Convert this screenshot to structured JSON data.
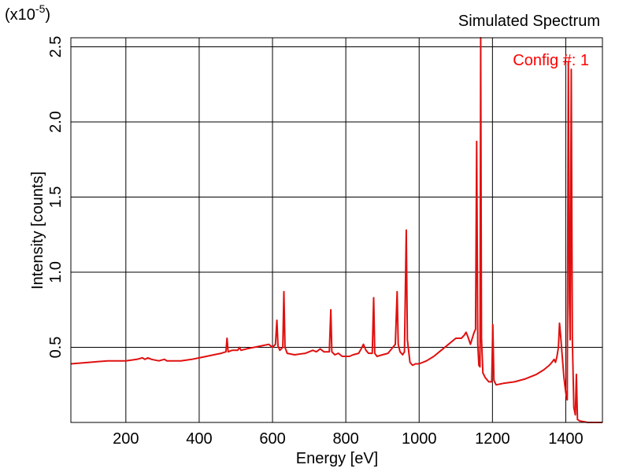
{
  "chart_data": {
    "type": "line",
    "title": "Simulated Spectrum",
    "xlabel": "Energy [eV]",
    "ylabel": "Intensity [counts]",
    "y_multiplier": {
      "base": "(x10",
      "exponent": "-5",
      "close": ")"
    },
    "annotation": "Config #: 1",
    "xlim": [
      50,
      1500
    ],
    "ylim": [
      0,
      2.56
    ],
    "x_ticks": [
      200,
      400,
      600,
      800,
      1000,
      1200,
      1400
    ],
    "x_tick_labels": [
      "200",
      "400",
      "600",
      "800",
      "1000",
      "1200",
      "1400"
    ],
    "y_ticks": [
      0.5,
      1.0,
      1.5,
      2.0,
      2.5
    ],
    "y_tick_labels": [
      "0.5",
      "1.0",
      "1.5",
      "2.0",
      "2.5"
    ],
    "grid": true,
    "line_color": "#e01010",
    "annotation_color": "#ff0000",
    "series": [
      {
        "values": [
          [
            50,
            0.39
          ],
          [
            100,
            0.4
          ],
          [
            150,
            0.41
          ],
          [
            200,
            0.41
          ],
          [
            230,
            0.42
          ],
          [
            245,
            0.43
          ],
          [
            252,
            0.42
          ],
          [
            260,
            0.43
          ],
          [
            270,
            0.42
          ],
          [
            290,
            0.41
          ],
          [
            305,
            0.42
          ],
          [
            312,
            0.41
          ],
          [
            330,
            0.41
          ],
          [
            350,
            0.41
          ],
          [
            380,
            0.42
          ],
          [
            400,
            0.43
          ],
          [
            420,
            0.44
          ],
          [
            440,
            0.45
          ],
          [
            460,
            0.46
          ],
          [
            473,
            0.47
          ],
          [
            476,
            0.56
          ],
          [
            479,
            0.47
          ],
          [
            490,
            0.48
          ],
          [
            505,
            0.48
          ],
          [
            510,
            0.5
          ],
          [
            514,
            0.48
          ],
          [
            530,
            0.49
          ],
          [
            550,
            0.5
          ],
          [
            570,
            0.51
          ],
          [
            590,
            0.52
          ],
          [
            600,
            0.5
          ],
          [
            608,
            0.52
          ],
          [
            612,
            0.68
          ],
          [
            615,
            0.51
          ],
          [
            620,
            0.48
          ],
          [
            628,
            0.5
          ],
          [
            631,
            0.87
          ],
          [
            634,
            0.5
          ],
          [
            640,
            0.46
          ],
          [
            660,
            0.45
          ],
          [
            690,
            0.46
          ],
          [
            710,
            0.48
          ],
          [
            720,
            0.47
          ],
          [
            730,
            0.49
          ],
          [
            740,
            0.47
          ],
          [
            755,
            0.47
          ],
          [
            759,
            0.75
          ],
          [
            762,
            0.47
          ],
          [
            770,
            0.45
          ],
          [
            780,
            0.46
          ],
          [
            790,
            0.44
          ],
          [
            810,
            0.44
          ],
          [
            820,
            0.45
          ],
          [
            835,
            0.46
          ],
          [
            842,
            0.49
          ],
          [
            848,
            0.52
          ],
          [
            855,
            0.48
          ],
          [
            862,
            0.46
          ],
          [
            872,
            0.46
          ],
          [
            876,
            0.83
          ],
          [
            879,
            0.46
          ],
          [
            885,
            0.44
          ],
          [
            900,
            0.45
          ],
          [
            915,
            0.46
          ],
          [
            925,
            0.49
          ],
          [
            935,
            0.52
          ],
          [
            940,
            0.87
          ],
          [
            943,
            0.52
          ],
          [
            948,
            0.47
          ],
          [
            955,
            0.45
          ],
          [
            960,
            0.47
          ],
          [
            965,
            1.28
          ],
          [
            968,
            0.55
          ],
          [
            975,
            0.4
          ],
          [
            982,
            0.38
          ],
          [
            990,
            0.39
          ],
          [
            1000,
            0.39
          ],
          [
            1020,
            0.41
          ],
          [
            1040,
            0.44
          ],
          [
            1060,
            0.48
          ],
          [
            1080,
            0.52
          ],
          [
            1100,
            0.56
          ],
          [
            1115,
            0.56
          ],
          [
            1123,
            0.58
          ],
          [
            1128,
            0.6
          ],
          [
            1133,
            0.57
          ],
          [
            1140,
            0.52
          ],
          [
            1145,
            0.56
          ],
          [
            1150,
            0.6
          ],
          [
            1154,
            0.62
          ],
          [
            1157,
            1.87
          ],
          [
            1160,
            0.52
          ],
          [
            1163,
            0.38
          ],
          [
            1166,
            0.37
          ],
          [
            1168,
            2.56
          ],
          [
            1170,
            0.56
          ],
          [
            1174,
            0.33
          ],
          [
            1180,
            0.3
          ],
          [
            1190,
            0.27
          ],
          [
            1198,
            0.27
          ],
          [
            1201,
            0.65
          ],
          [
            1204,
            0.28
          ],
          [
            1210,
            0.25
          ],
          [
            1230,
            0.26
          ],
          [
            1260,
            0.27
          ],
          [
            1290,
            0.29
          ],
          [
            1320,
            0.32
          ],
          [
            1340,
            0.35
          ],
          [
            1355,
            0.38
          ],
          [
            1362,
            0.4
          ],
          [
            1368,
            0.42
          ],
          [
            1372,
            0.4
          ],
          [
            1376,
            0.44
          ],
          [
            1380,
            0.5
          ],
          [
            1383,
            0.66
          ],
          [
            1386,
            0.58
          ],
          [
            1390,
            0.45
          ],
          [
            1395,
            0.3
          ],
          [
            1400,
            0.2
          ],
          [
            1404,
            0.15
          ],
          [
            1407,
            2.4
          ],
          [
            1410,
            0.8
          ],
          [
            1412,
            0.55
          ],
          [
            1415,
            2.35
          ],
          [
            1418,
            0.55
          ],
          [
            1422,
            0.1
          ],
          [
            1426,
            0.05
          ],
          [
            1429,
            0.32
          ],
          [
            1432,
            0.02
          ],
          [
            1438,
            0.01
          ],
          [
            1460,
            0.0
          ],
          [
            1500,
            0.0
          ]
        ]
      }
    ]
  }
}
